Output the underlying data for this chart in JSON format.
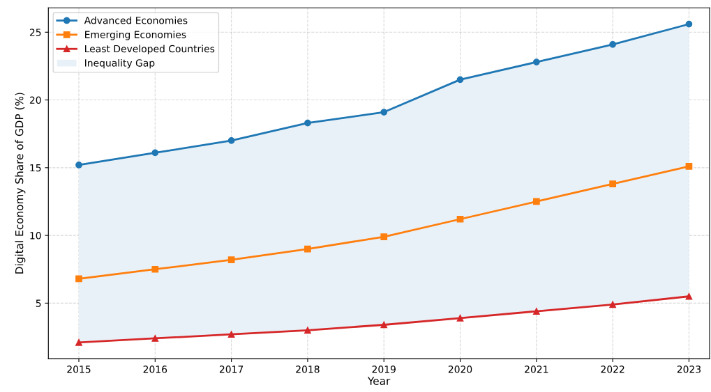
{
  "chart_data": {
    "type": "line",
    "xlabel": "Year",
    "ylabel": "Digital Economy Share of GDP (%)",
    "x": [
      2015,
      2016,
      2017,
      2018,
      2019,
      2020,
      2021,
      2022,
      2023
    ],
    "series": [
      {
        "name": "Advanced Economies",
        "color": "#1f77b4",
        "marker": "circle",
        "values": [
          15.2,
          16.1,
          17.0,
          18.3,
          19.1,
          21.5,
          22.8,
          24.1,
          25.6
        ]
      },
      {
        "name": "Emerging Economies",
        "color": "#ff7f0e",
        "marker": "square",
        "values": [
          6.8,
          7.5,
          8.2,
          9.0,
          9.9,
          11.2,
          12.5,
          13.8,
          15.1
        ]
      },
      {
        "name": "Least Developed Countries",
        "color": "#d62728",
        "marker": "triangle",
        "values": [
          2.1,
          2.4,
          2.7,
          3.0,
          3.4,
          3.9,
          4.4,
          4.9,
          5.5
        ]
      },
      {
        "name": "Inequality Gap",
        "type": "area",
        "color": "#e9f1f8",
        "values": [
          null,
          null,
          null,
          null,
          null,
          null,
          null,
          null,
          null
        ],
        "lower": [
          2.1,
          2.4,
          2.7,
          3.0,
          3.4,
          3.9,
          4.4,
          4.9,
          5.5
        ],
        "upper": [
          15.2,
          16.1,
          17.0,
          18.3,
          19.1,
          21.5,
          22.8,
          24.1,
          25.6
        ]
      }
    ],
    "xlim": [
      2014.6,
      2023.27
    ],
    "xticks": [
      2015,
      2016,
      2017,
      2018,
      2019,
      2020,
      2021,
      2022,
      2023
    ],
    "ylim": [
      0.9,
      26.8
    ],
    "yticks": [
      5,
      10,
      15,
      20,
      25
    ],
    "grid": true,
    "legend": "top left",
    "line_style": "solid"
  }
}
